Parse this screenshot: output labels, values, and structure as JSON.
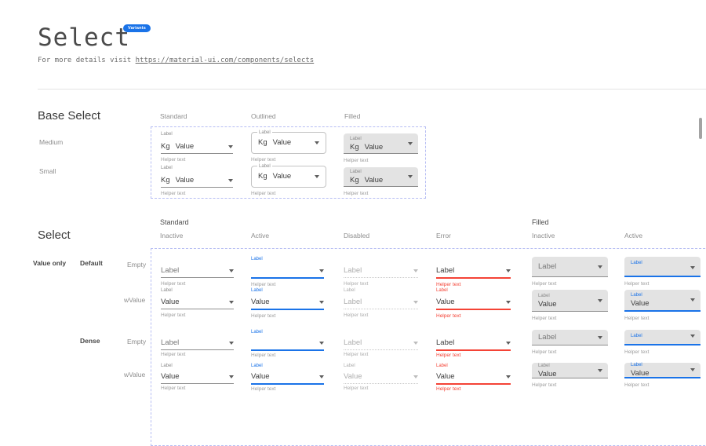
{
  "colors": {
    "primary_blue": "#1a73e8",
    "error_red": "#f44336",
    "filled_bg": "#e3e3e3",
    "dashed_border": "#b6bdf3",
    "underline_gray": "#8f8f8f",
    "helper_gray": "#9c9c9c",
    "disabled_gray": "#aeaeae"
  },
  "page": {
    "title": "Select",
    "badge": "Variants",
    "details_prefix": "For more details visit ",
    "details_link": "https://material-ui.com/components/selects"
  },
  "base_select": {
    "heading": "Base Select",
    "columns": [
      "Standard",
      "Outlined",
      "Filled"
    ],
    "rows": [
      "Medium",
      "Small"
    ],
    "field": {
      "label": "Label",
      "adornment": "Kg",
      "value": "Value",
      "helper": "Helper text"
    }
  },
  "select_matrix": {
    "heading": "Select",
    "group_headers": [
      "Standard",
      "Filled"
    ],
    "column_headers": [
      "Inactive",
      "Active",
      "Disabled",
      "Error",
      "Inactive",
      "Active"
    ],
    "row_group_label": "Value only",
    "density_labels": [
      "Default",
      "Dense"
    ],
    "state_labels": [
      "Empty",
      "wValue",
      "Empty",
      "wValue"
    ],
    "texts": {
      "label": "Label",
      "value": "Value",
      "helper": "Helper text"
    }
  },
  "cells": {
    "bm1": {
      "base": true,
      "variant": "standard"
    },
    "bm2": {
      "base": true,
      "variant": "outlined"
    },
    "bm3": {
      "base": true,
      "variant": "filled",
      "boxh": 26
    },
    "bs1": {
      "base": true,
      "variant": "standard"
    },
    "bs2": {
      "base": true,
      "variant": "outlined"
    },
    "bs3": {
      "base": true,
      "variant": "filled",
      "boxh": 25
    },
    "r1c1": {
      "variant": "standard",
      "state": "inactive",
      "caption": null,
      "text": "label"
    },
    "r1c2": {
      "variant": "standard",
      "state": "active",
      "caption": "label",
      "text": null
    },
    "r1c3": {
      "variant": "standard",
      "state": "disabled",
      "caption": null,
      "text": "label"
    },
    "r1c4": {
      "variant": "standard",
      "state": "error",
      "caption": null,
      "text": "label"
    },
    "r1c5": {
      "variant": "filled",
      "state": "inactive",
      "caption": null,
      "text": "label"
    },
    "r1c6": {
      "variant": "filled",
      "state": "active",
      "caption": "label",
      "text": null
    },
    "r2c1": {
      "variant": "standard",
      "state": "inactive",
      "caption": "label",
      "text": "value"
    },
    "r2c2": {
      "variant": "standard",
      "state": "active",
      "caption": "label",
      "text": "value"
    },
    "r2c3": {
      "variant": "standard",
      "state": "disabled",
      "caption": "label",
      "text": "label"
    },
    "r2c4": {
      "variant": "standard",
      "state": "error",
      "caption": "label",
      "text": "value"
    },
    "r2c5": {
      "variant": "filled",
      "state": "inactive",
      "caption": "label",
      "text": "value"
    },
    "r2c6": {
      "variant": "filled",
      "state": "active",
      "caption": "label",
      "text": "value"
    },
    "r3c1": {
      "variant": "standard",
      "state": "inactive",
      "caption": null,
      "text": "label",
      "dense": true
    },
    "r3c2": {
      "variant": "standard",
      "state": "active",
      "caption": "label",
      "text": null,
      "dense": true
    },
    "r3c3": {
      "variant": "standard",
      "state": "disabled",
      "caption": null,
      "text": "label",
      "dense": true
    },
    "r3c4": {
      "variant": "standard",
      "state": "error",
      "caption": null,
      "text": "label",
      "dense": true
    },
    "r3c5": {
      "variant": "filled",
      "state": "inactive",
      "caption": null,
      "text": "label",
      "dense": true
    },
    "r3c6": {
      "variant": "filled",
      "state": "active",
      "caption": "label",
      "text": null,
      "dense": true
    },
    "r4c1": {
      "variant": "standard",
      "state": "inactive",
      "caption": "label",
      "text": "value",
      "dense": true
    },
    "r4c2": {
      "variant": "standard",
      "state": "active",
      "caption": "label",
      "text": "value",
      "dense": true
    },
    "r4c3": {
      "variant": "standard",
      "state": "disabled",
      "caption": "label",
      "text": "value",
      "dense": true
    },
    "r4c4": {
      "variant": "standard",
      "state": "error",
      "caption": "label",
      "text": "value",
      "dense": true
    },
    "r4c5": {
      "variant": "filled",
      "state": "inactive",
      "caption": "label",
      "text": "value",
      "dense": true
    },
    "r4c6": {
      "variant": "filled",
      "state": "active",
      "caption": "label",
      "text": "value",
      "dense": true
    }
  }
}
